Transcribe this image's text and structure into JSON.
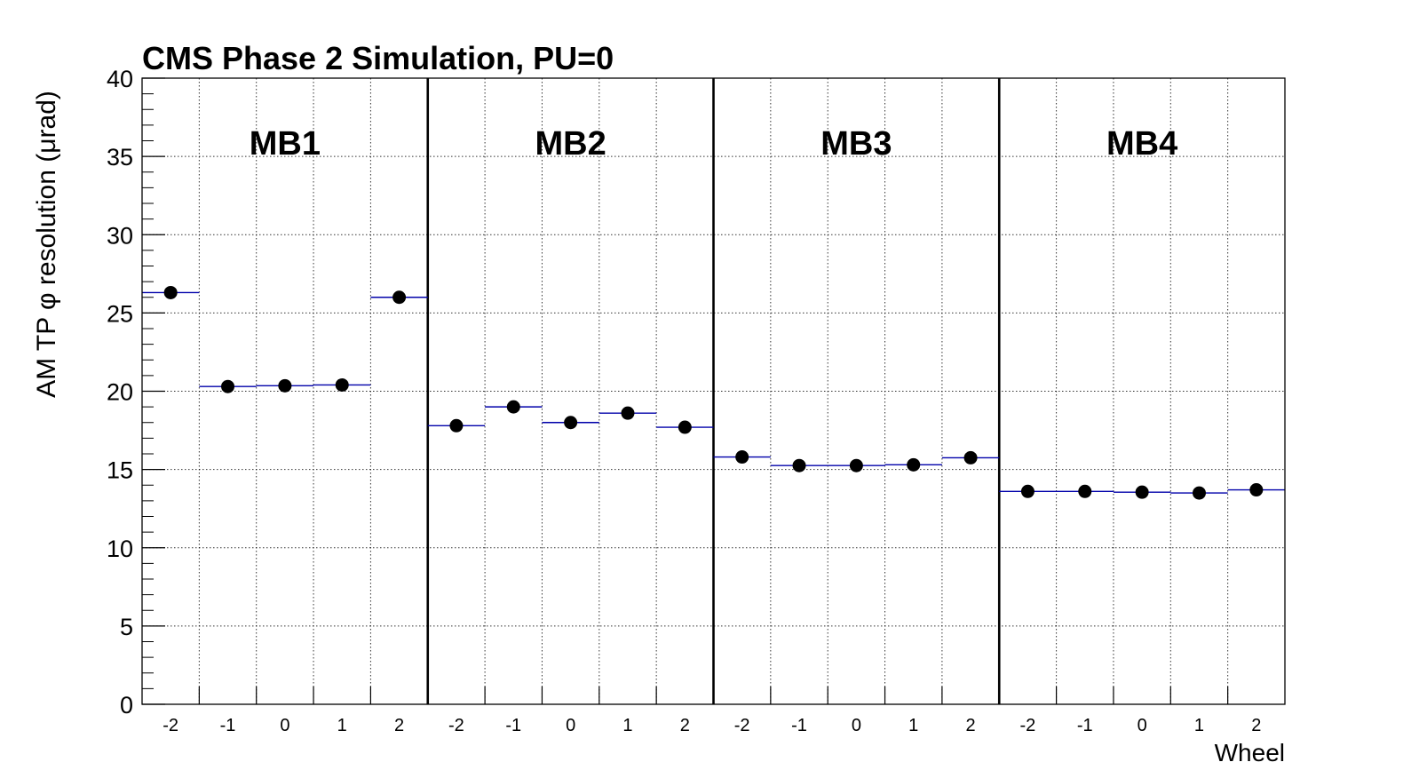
{
  "chart_data": {
    "type": "scatter",
    "title": "CMS Phase 2 Simulation, PU=0",
    "xlabel": "Wheel",
    "ylabel": "AM TP φ resolution (μrad)",
    "ylim": [
      0,
      40
    ],
    "yticks": [
      "0",
      "5",
      "10",
      "15",
      "20",
      "25",
      "30",
      "35",
      "40"
    ],
    "grid": true,
    "groups": [
      "MB1",
      "MB2",
      "MB3",
      "MB4"
    ],
    "categories": [
      "-2",
      "-1",
      "0",
      "1",
      "2"
    ],
    "series": [
      {
        "values": [
          [
            26.3,
            20.3,
            20.35,
            20.4,
            26.0
          ],
          [
            17.8,
            19.0,
            18.0,
            18.6,
            17.7
          ],
          [
            15.8,
            15.25,
            15.25,
            15.3,
            15.75
          ],
          [
            13.6,
            13.6,
            13.55,
            13.5,
            13.7
          ]
        ]
      }
    ],
    "colors": {
      "marker": "#000000",
      "histogram_line": "#0000aa",
      "frame": "#000000",
      "grid": "#000000"
    }
  }
}
